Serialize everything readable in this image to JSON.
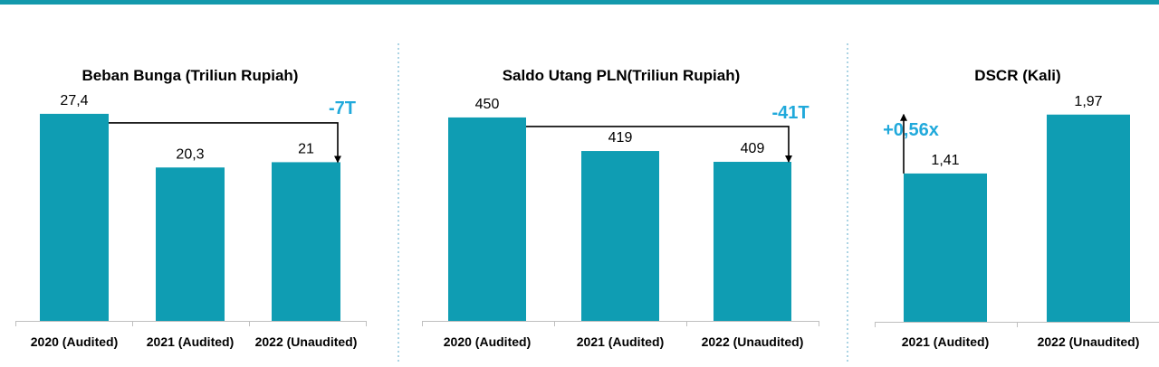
{
  "colors": {
    "accent": "#1399ac",
    "bar": "#0f9db3",
    "delta": "#20a9db",
    "divider": "#5aa8c8",
    "axis": "#bfbfbf"
  },
  "chart_data": [
    {
      "type": "bar",
      "title": "Beban Bunga (Triliun Rupiah)",
      "categories": [
        "2020 (Audited)",
        "2021 (Audited)",
        "2022 (Unaudited)"
      ],
      "values": [
        27.4,
        20.3,
        21
      ],
      "value_labels": [
        "27,4",
        "20,3",
        "21"
      ],
      "ylim": [
        0,
        30.5
      ],
      "annotation": {
        "text": "-7T",
        "from_index": 0,
        "to_index": 2,
        "direction": "down"
      }
    },
    {
      "type": "bar",
      "title": "Saldo Utang PLN(Triliun Rupiah)",
      "categories": [
        "2020 (Audited)",
        "2021 (Audited)",
        "2022 (Unaudited)"
      ],
      "values": [
        450,
        419,
        409
      ],
      "value_labels": [
        "450",
        "419",
        "409"
      ],
      "ylim": [
        262,
        475
      ],
      "annotation": {
        "text": "-41T",
        "from_index": 0,
        "to_index": 2,
        "direction": "down"
      }
    },
    {
      "type": "bar",
      "title": "DSCR (Kali)",
      "categories": [
        "2021 (Audited)",
        "2022 (Unaudited)"
      ],
      "values": [
        1.41,
        1.97
      ],
      "value_labels": [
        "1,41",
        "1,97"
      ],
      "ylim": [
        0,
        2.2
      ],
      "annotation": {
        "text": "+0,56x",
        "from_index": 0,
        "to_index": 1,
        "direction": "up"
      }
    }
  ]
}
